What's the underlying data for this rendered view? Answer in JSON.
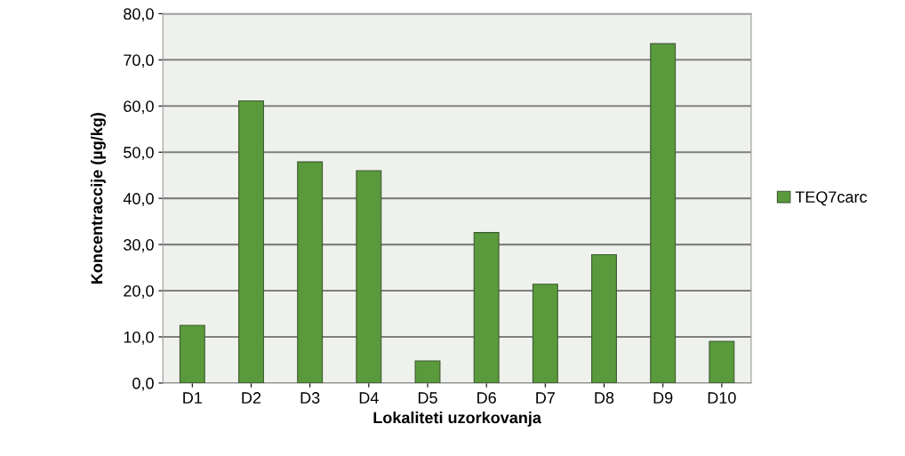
{
  "chart_data": {
    "type": "bar",
    "xlabel": "Lokaliteti uzorkovanja",
    "ylabel": "Koncentraccije (µg/kg)",
    "categories": [
      "D1",
      "D2",
      "D3",
      "D4",
      "D5",
      "D6",
      "D7",
      "D8",
      "D9",
      "D10"
    ],
    "series": [
      {
        "name": "TEQ7carc",
        "color": "#5a9a3c",
        "values": [
          12.5,
          61.1,
          47.9,
          46.0,
          4.8,
          32.6,
          21.4,
          27.8,
          73.5,
          9.0
        ]
      }
    ],
    "ylim": [
      0,
      80
    ],
    "yticks": [
      {
        "value": 0,
        "label": "0,0"
      },
      {
        "value": 10,
        "label": "10,0"
      },
      {
        "value": 20,
        "label": "20,0"
      },
      {
        "value": 30,
        "label": "30,0"
      },
      {
        "value": 40,
        "label": "40,0"
      },
      {
        "value": 50,
        "label": "50,0"
      },
      {
        "value": 60,
        "label": "60,0"
      },
      {
        "value": 70,
        "label": "70,0"
      },
      {
        "value": 80,
        "label": "80,0"
      }
    ],
    "grid": "y",
    "legend": "right"
  }
}
